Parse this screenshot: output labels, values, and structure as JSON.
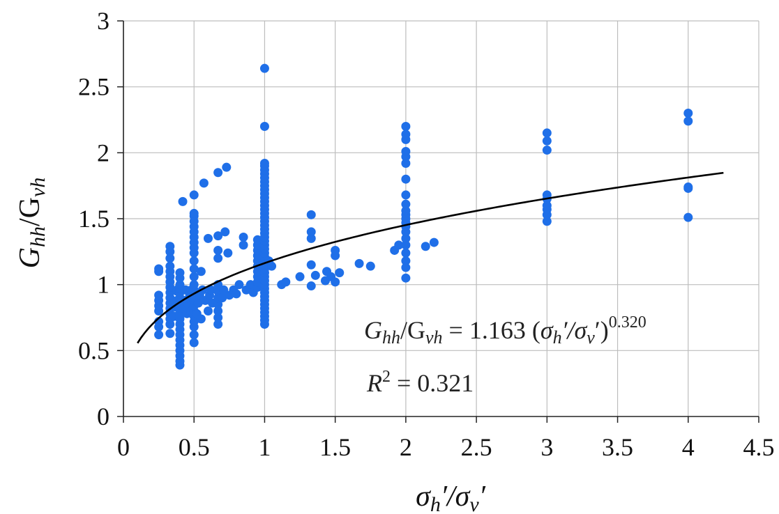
{
  "chart_data": {
    "type": "scatter",
    "title": "",
    "xlabel": {
      "base1": "σ",
      "sub1": "h",
      "mid": "′/σ",
      "sub2": "v",
      "end": "′"
    },
    "ylabel": {
      "base1": "G",
      "sub1": "hh",
      "mid": "/G",
      "sub2": "vh"
    },
    "xlim": [
      0,
      4.5
    ],
    "ylim": [
      0,
      3
    ],
    "xticks": [
      "0",
      "0.5",
      "1",
      "1.5",
      "2",
      "2.5",
      "3",
      "3.5",
      "4",
      "4.5"
    ],
    "yticks": [
      "0",
      "0.5",
      "1",
      "1.5",
      "2",
      "2.5",
      "3"
    ],
    "grid": true,
    "legend": "none",
    "marker_color": "#1f6fe8",
    "trend_color": "#000000",
    "trend": {
      "coefficient": 1.163,
      "exponent": 0.32,
      "x_range": [
        0.1,
        4.25
      ]
    },
    "annotations": {
      "eq_lhs": {
        "g1": "G",
        "s1": "hh",
        "mid": "/G",
        "s2": "vh"
      },
      "eq_rhs1": " = 1.163 (",
      "eq_sigma1": "σ",
      "eq_sub_h": "h",
      "eq_mid": "′/",
      "eq_sigma2": "σ",
      "eq_sub_v": "v",
      "eq_close": "′)",
      "eq_exp": "0.320",
      "r2_label": "R",
      "r2_sup": "2",
      "r2_value": " = 0.321"
    },
    "points": [
      [
        0.25,
        0.62
      ],
      [
        0.25,
        0.68
      ],
      [
        0.25,
        0.72
      ],
      [
        0.25,
        0.8
      ],
      [
        0.25,
        0.84
      ],
      [
        0.25,
        0.88
      ],
      [
        0.25,
        0.92
      ],
      [
        0.25,
        1.1
      ],
      [
        0.25,
        1.12
      ],
      [
        0.33,
        0.63
      ],
      [
        0.33,
        0.7
      ],
      [
        0.33,
        0.74
      ],
      [
        0.33,
        0.78
      ],
      [
        0.33,
        0.82
      ],
      [
        0.33,
        0.86
      ],
      [
        0.33,
        0.9
      ],
      [
        0.33,
        0.94
      ],
      [
        0.33,
        0.98
      ],
      [
        0.33,
        1.02
      ],
      [
        0.33,
        1.06
      ],
      [
        0.33,
        1.1
      ],
      [
        0.33,
        1.14
      ],
      [
        0.33,
        1.2
      ],
      [
        0.33,
        1.25
      ],
      [
        0.33,
        1.29
      ],
      [
        0.36,
        0.76
      ],
      [
        0.37,
        0.83
      ],
      [
        0.38,
        0.88
      ],
      [
        0.38,
        0.95
      ],
      [
        0.39,
        0.97
      ],
      [
        0.4,
        0.39
      ],
      [
        0.4,
        0.42
      ],
      [
        0.4,
        0.46
      ],
      [
        0.4,
        0.5
      ],
      [
        0.4,
        0.54
      ],
      [
        0.4,
        0.58
      ],
      [
        0.4,
        0.62
      ],
      [
        0.4,
        0.66
      ],
      [
        0.4,
        0.7
      ],
      [
        0.4,
        0.74
      ],
      [
        0.4,
        0.78
      ],
      [
        0.4,
        0.82
      ],
      [
        0.4,
        0.86
      ],
      [
        0.4,
        0.9
      ],
      [
        0.4,
        0.94
      ],
      [
        0.4,
        0.97
      ],
      [
        0.4,
        1.0
      ],
      [
        0.4,
        1.05
      ],
      [
        0.4,
        1.09
      ],
      [
        0.42,
        1.63
      ],
      [
        0.43,
        0.82
      ],
      [
        0.44,
        0.88
      ],
      [
        0.44,
        0.96
      ],
      [
        0.45,
        0.78
      ],
      [
        0.46,
        0.85
      ],
      [
        0.47,
        0.92
      ],
      [
        0.48,
        0.8
      ],
      [
        0.48,
        0.88
      ],
      [
        0.48,
        0.96
      ],
      [
        0.5,
        0.56
      ],
      [
        0.5,
        0.62
      ],
      [
        0.5,
        0.68
      ],
      [
        0.5,
        0.72
      ],
      [
        0.5,
        0.76
      ],
      [
        0.5,
        0.8
      ],
      [
        0.5,
        0.84
      ],
      [
        0.5,
        0.88
      ],
      [
        0.5,
        0.92
      ],
      [
        0.5,
        0.96
      ],
      [
        0.5,
        1.0
      ],
      [
        0.5,
        1.06
      ],
      [
        0.5,
        1.12
      ],
      [
        0.5,
        1.18
      ],
      [
        0.5,
        1.24
      ],
      [
        0.5,
        1.28
      ],
      [
        0.5,
        1.32
      ],
      [
        0.5,
        1.36
      ],
      [
        0.5,
        1.4
      ],
      [
        0.5,
        1.44
      ],
      [
        0.5,
        1.48
      ],
      [
        0.5,
        1.52
      ],
      [
        0.5,
        1.54
      ],
      [
        0.5,
        1.68
      ],
      [
        0.52,
        0.78
      ],
      [
        0.53,
        0.86
      ],
      [
        0.54,
        0.92
      ],
      [
        0.55,
        0.74
      ],
      [
        0.55,
        1.1
      ],
      [
        0.56,
        0.96
      ],
      [
        0.57,
        1.77
      ],
      [
        0.58,
        0.88
      ],
      [
        0.6,
        1.35
      ],
      [
        0.6,
        0.8
      ],
      [
        0.61,
        0.92
      ],
      [
        0.62,
        0.96
      ],
      [
        0.63,
        0.86
      ],
      [
        0.67,
        0.7
      ],
      [
        0.67,
        0.75
      ],
      [
        0.67,
        0.8
      ],
      [
        0.67,
        0.85
      ],
      [
        0.67,
        0.9
      ],
      [
        0.67,
        0.95
      ],
      [
        0.67,
        1.0
      ],
      [
        0.67,
        1.2
      ],
      [
        0.67,
        1.26
      ],
      [
        0.67,
        1.37
      ],
      [
        0.67,
        1.85
      ],
      [
        0.7,
        0.9
      ],
      [
        0.71,
        0.96
      ],
      [
        0.72,
        1.4
      ],
      [
        0.73,
        1.89
      ],
      [
        0.74,
        1.24
      ],
      [
        0.75,
        0.92
      ],
      [
        0.78,
        0.96
      ],
      [
        0.8,
        0.93
      ],
      [
        0.82,
        1.0
      ],
      [
        0.85,
        1.3
      ],
      [
        0.85,
        1.36
      ],
      [
        0.87,
        0.96
      ],
      [
        0.9,
        1.0
      ],
      [
        0.92,
        0.94
      ],
      [
        0.95,
        0.98
      ],
      [
        0.95,
        1.02
      ],
      [
        0.95,
        1.06
      ],
      [
        0.95,
        1.1
      ],
      [
        0.95,
        1.14
      ],
      [
        0.95,
        1.18
      ],
      [
        0.95,
        1.22
      ],
      [
        0.95,
        1.26
      ],
      [
        0.95,
        1.3
      ],
      [
        0.95,
        1.34
      ],
      [
        1.0,
        0.7
      ],
      [
        1.0,
        0.73
      ],
      [
        1.0,
        0.76
      ],
      [
        1.0,
        0.79
      ],
      [
        1.0,
        0.82
      ],
      [
        1.0,
        0.85
      ],
      [
        1.0,
        0.88
      ],
      [
        1.0,
        0.91
      ],
      [
        1.0,
        0.94
      ],
      [
        1.0,
        0.97
      ],
      [
        1.0,
        1.0
      ],
      [
        1.0,
        1.03
      ],
      [
        1.0,
        1.06
      ],
      [
        1.0,
        1.09
      ],
      [
        1.0,
        1.12
      ],
      [
        1.0,
        1.15
      ],
      [
        1.0,
        1.18
      ],
      [
        1.0,
        1.21
      ],
      [
        1.0,
        1.24
      ],
      [
        1.0,
        1.27
      ],
      [
        1.0,
        1.3
      ],
      [
        1.0,
        1.33
      ],
      [
        1.0,
        1.36
      ],
      [
        1.0,
        1.39
      ],
      [
        1.0,
        1.42
      ],
      [
        1.0,
        1.45
      ],
      [
        1.0,
        1.48
      ],
      [
        1.0,
        1.51
      ],
      [
        1.0,
        1.54
      ],
      [
        1.0,
        1.57
      ],
      [
        1.0,
        1.6
      ],
      [
        1.0,
        1.63
      ],
      [
        1.0,
        1.66
      ],
      [
        1.0,
        1.69
      ],
      [
        1.0,
        1.72
      ],
      [
        1.0,
        1.75
      ],
      [
        1.0,
        1.78
      ],
      [
        1.0,
        1.81
      ],
      [
        1.0,
        1.84
      ],
      [
        1.0,
        1.87
      ],
      [
        1.0,
        1.9
      ],
      [
        1.0,
        1.92
      ],
      [
        1.0,
        2.2
      ],
      [
        1.0,
        2.64
      ],
      [
        1.03,
        1.18
      ],
      [
        1.05,
        1.14
      ],
      [
        1.12,
        1.0
      ],
      [
        1.15,
        1.02
      ],
      [
        1.25,
        1.06
      ],
      [
        1.33,
        0.99
      ],
      [
        1.33,
        1.15
      ],
      [
        1.33,
        1.35
      ],
      [
        1.33,
        1.4
      ],
      [
        1.33,
        1.53
      ],
      [
        1.36,
        1.07
      ],
      [
        1.43,
        1.03
      ],
      [
        1.44,
        1.1
      ],
      [
        1.47,
        1.06
      ],
      [
        1.5,
        1.02
      ],
      [
        1.5,
        1.22
      ],
      [
        1.5,
        1.26
      ],
      [
        1.53,
        1.09
      ],
      [
        1.67,
        1.16
      ],
      [
        1.75,
        1.14
      ],
      [
        1.92,
        1.26
      ],
      [
        1.95,
        1.3
      ],
      [
        2.0,
        1.05
      ],
      [
        2.0,
        1.13
      ],
      [
        2.0,
        1.18
      ],
      [
        2.0,
        1.24
      ],
      [
        2.0,
        1.3
      ],
      [
        2.0,
        1.35
      ],
      [
        2.0,
        1.4
      ],
      [
        2.0,
        1.44
      ],
      [
        2.0,
        1.47
      ],
      [
        2.0,
        1.5
      ],
      [
        2.0,
        1.53
      ],
      [
        2.0,
        1.56
      ],
      [
        2.0,
        1.61
      ],
      [
        2.0,
        1.68
      ],
      [
        2.0,
        1.8
      ],
      [
        2.0,
        1.92
      ],
      [
        2.0,
        1.97
      ],
      [
        2.0,
        2.01
      ],
      [
        2.0,
        2.1
      ],
      [
        2.0,
        2.14
      ],
      [
        2.0,
        2.2
      ],
      [
        2.14,
        1.29
      ],
      [
        2.2,
        1.32
      ],
      [
        3.0,
        1.48
      ],
      [
        3.0,
        1.53
      ],
      [
        3.0,
        1.57
      ],
      [
        3.0,
        1.6
      ],
      [
        3.0,
        1.65
      ],
      [
        3.0,
        1.68
      ],
      [
        3.0,
        2.02
      ],
      [
        3.0,
        2.09
      ],
      [
        3.0,
        2.15
      ],
      [
        4.0,
        1.51
      ],
      [
        4.0,
        1.73
      ],
      [
        4.0,
        1.74
      ],
      [
        4.0,
        2.24
      ],
      [
        4.0,
        2.3
      ]
    ]
  }
}
